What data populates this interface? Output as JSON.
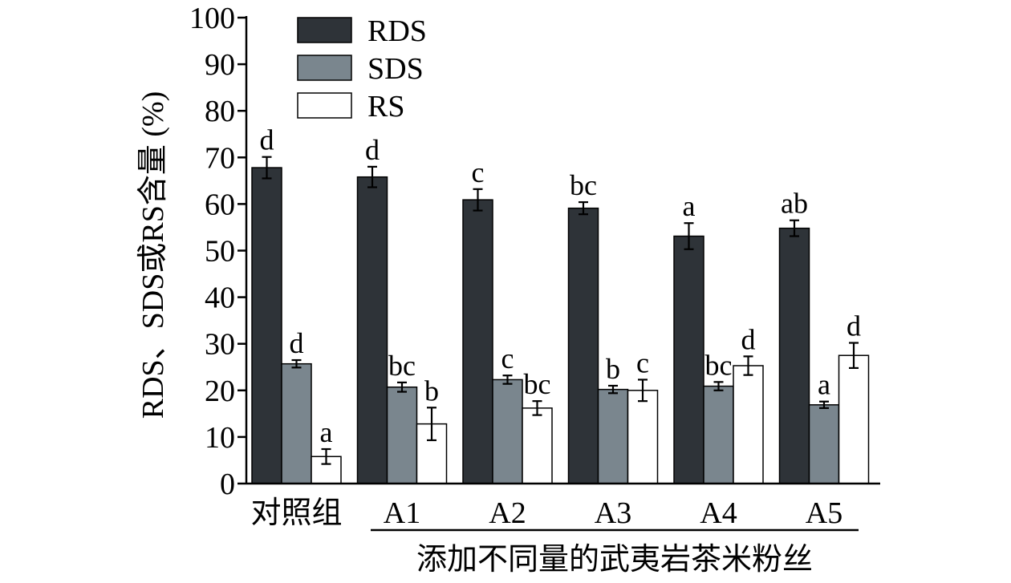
{
  "chart_data": {
    "type": "bar",
    "categories": [
      "对照组",
      "A1",
      "A2",
      "A3",
      "A4",
      "A5"
    ],
    "ylabel": "RDS、SDS或RS含量 (%)",
    "group_label": "添加不同量的武夷岩茶米粉丝",
    "ylim": [
      0,
      100
    ],
    "yticks": [
      0,
      10,
      20,
      30,
      40,
      50,
      60,
      70,
      80,
      90,
      100
    ],
    "legend_position": "top-left",
    "series": [
      {
        "name": "RDS",
        "color": "#2e3338",
        "values": [
          67.8,
          65.8,
          60.9,
          59.1,
          53.1,
          54.8
        ],
        "errors": [
          2.3,
          2.2,
          2.3,
          1.3,
          2.8,
          1.7
        ],
        "letters": [
          "d",
          "d",
          "c",
          "bc",
          "a",
          "ab"
        ]
      },
      {
        "name": "SDS",
        "color": "#7a868e",
        "values": [
          25.7,
          20.7,
          22.3,
          20.2,
          20.9,
          16.9
        ],
        "errors": [
          0.8,
          1.0,
          0.9,
          0.8,
          0.9,
          0.7
        ],
        "letters": [
          "d",
          "bc",
          "c",
          "b",
          "bc",
          "a"
        ]
      },
      {
        "name": "RS",
        "color": "#ffffff",
        "values": [
          5.8,
          12.8,
          16.2,
          20.0,
          25.3,
          27.5
        ],
        "errors": [
          1.6,
          3.5,
          1.5,
          2.3,
          2.0,
          2.7
        ],
        "letters": [
          "a",
          "b",
          "bc",
          "c",
          "d",
          "d"
        ]
      }
    ]
  }
}
